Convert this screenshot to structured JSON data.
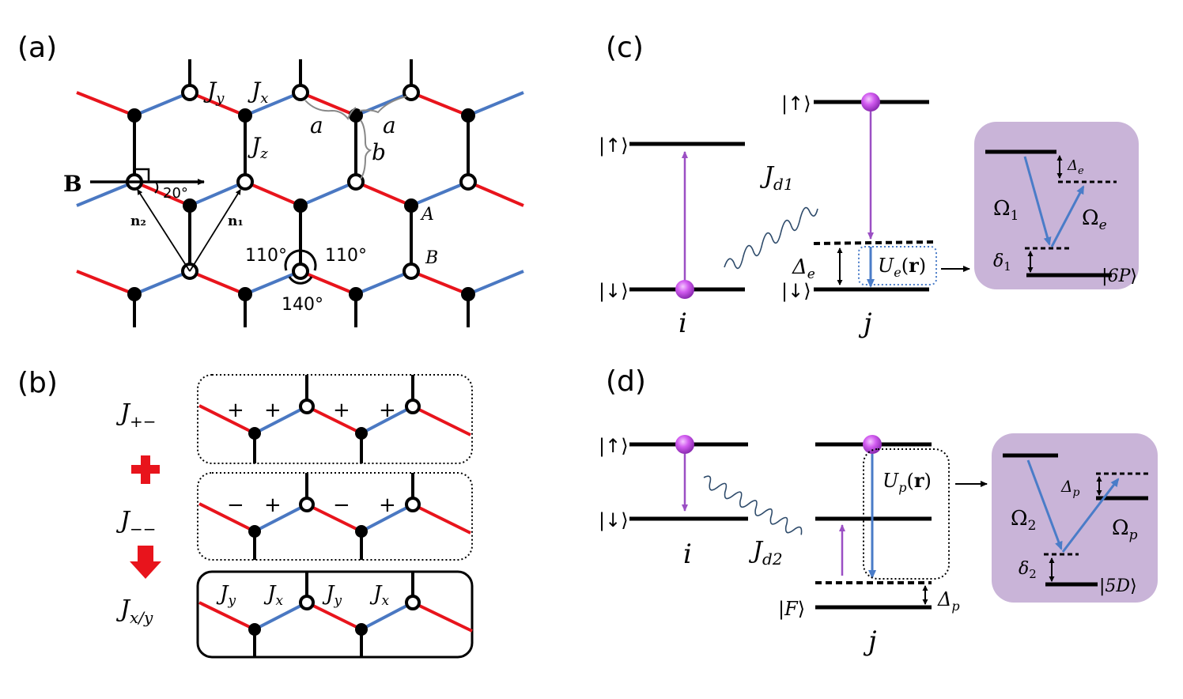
{
  "panels": {
    "a": {
      "label": "(a)",
      "bond_jy": "J_y",
      "bond_jx": "J_x",
      "bond_jz": "J_z",
      "len_a1": "a",
      "len_a2": "a",
      "len_b": "b",
      "field": "B",
      "field_angle": "20°",
      "vec_n2": "n₂",
      "vec_n1": "n₁",
      "site_A": "A",
      "site_B": "B",
      "angle_left": "110°",
      "angle_right": "110°",
      "angle_bottom": "140°"
    },
    "b": {
      "label": "(b)",
      "row1_label": "J₊₋",
      "row2_label": "J₋₋",
      "row3_label": "J_x/y",
      "row1_signs": [
        "+",
        "+",
        "+",
        "+"
      ],
      "row2_signs": [
        "−",
        "+",
        "−",
        "+"
      ],
      "row3_bonds": [
        "J_y",
        "J_x",
        "J_y",
        "J_x"
      ]
    },
    "c": {
      "label": "(c)",
      "up_i": "|↑⟩",
      "down_i": "|↓⟩",
      "site_i": "i",
      "up_j": "|↑⟩",
      "down_j": "|↓⟩",
      "site_j": "j",
      "coupling": "J_d1",
      "detuning": "Δ_e",
      "potential": "U_e(r)",
      "inset": {
        "detuning_e": "Δ_e",
        "rabi_1": "Ω₁",
        "rabi_e": "Ω_e",
        "delta_1": "δ₁",
        "state": "|6P⟩"
      }
    },
    "d": {
      "label": "(d)",
      "up_i": "|↑⟩",
      "down_i": "|↓⟩",
      "site_i": "i",
      "coupling": "J_d2",
      "potential": "U_p(r)",
      "state_F": "|F⟩",
      "detuning": "Δ_p",
      "site_j": "j",
      "inset": {
        "detuning_p": "Δ_p",
        "rabi_2": "Ω₂",
        "rabi_p": "Ω_p",
        "delta_2": "δ₂",
        "state": "|5D⟩"
      }
    }
  },
  "colors": {
    "red_bond": "#e8141c",
    "blue_bond": "#4a78c2",
    "atom": "#cc44ee",
    "inset_bg": "#c9b4d8",
    "transition": "#9b4fc4",
    "laser": "#4a7cc8"
  }
}
